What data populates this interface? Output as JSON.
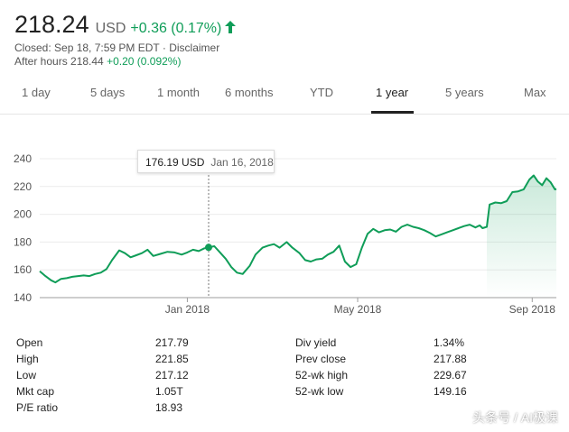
{
  "quote": {
    "price": "218.24",
    "currency": "USD",
    "change": "+0.36 (0.17%)",
    "arrow_icon": "arrow-up-icon",
    "closed_info": "Closed: Sep 18, 7:59 PM EDT · Disclaimer",
    "after_hours_label": "After hours 218.44",
    "after_hours_change": "+0.20 (0.092%)"
  },
  "tabs": [
    "1 day",
    "5 days",
    "1 month",
    "6 months",
    "YTD",
    "1 year",
    "5 years",
    "Max"
  ],
  "active_tab": "1 year",
  "tooltip": {
    "price": "176.19 USD",
    "date": "Jan 16, 2018"
  },
  "chart_data": {
    "type": "area",
    "title": "",
    "xlabel": "",
    "ylabel": "",
    "ylim": [
      140,
      240
    ],
    "yticks": [
      "240",
      "220",
      "200",
      "180",
      "160",
      "140"
    ],
    "xtick_labels": [
      "Jan 2018",
      "May 2018",
      "Sep 2018"
    ],
    "grid": "horizontal",
    "color": "#0f9d58",
    "series": [
      {
        "values": [
          [
            "2017-09-19",
            159.0
          ],
          [
            "2017-09-23",
            155.5
          ],
          [
            "2017-09-27",
            152.5
          ],
          [
            "2017-09-30",
            151.0
          ],
          [
            "2017-10-04",
            153.5
          ],
          [
            "2017-10-08",
            154.0
          ],
          [
            "2017-10-12",
            155.0
          ],
          [
            "2017-10-16",
            155.5
          ],
          [
            "2017-10-20",
            156.0
          ],
          [
            "2017-10-24",
            155.5
          ],
          [
            "2017-10-28",
            157.0
          ],
          [
            "2017-11-01",
            158.0
          ],
          [
            "2017-11-05",
            160.5
          ],
          [
            "2017-11-09",
            167.0
          ],
          [
            "2017-11-14",
            174.0
          ],
          [
            "2017-11-18",
            172.0
          ],
          [
            "2017-11-22",
            169.0
          ],
          [
            "2017-11-26",
            170.5
          ],
          [
            "2017-11-30",
            172.0
          ],
          [
            "2017-12-04",
            174.5
          ],
          [
            "2017-12-08",
            170.0
          ],
          [
            "2017-12-13",
            171.5
          ],
          [
            "2017-12-18",
            173.0
          ],
          [
            "2017-12-23",
            172.5
          ],
          [
            "2017-12-28",
            171.0
          ],
          [
            "2018-01-01",
            172.5
          ],
          [
            "2018-01-05",
            174.5
          ],
          [
            "2018-01-09",
            173.5
          ],
          [
            "2018-01-13",
            175.5
          ],
          [
            "2018-01-16",
            176.19
          ],
          [
            "2018-01-20",
            177.0
          ],
          [
            "2018-01-24",
            172.5
          ],
          [
            "2018-01-28",
            168.0
          ],
          [
            "2018-02-01",
            162.0
          ],
          [
            "2018-02-05",
            158.0
          ],
          [
            "2018-02-09",
            157.0
          ],
          [
            "2018-02-14",
            163.0
          ],
          [
            "2018-02-18",
            171.0
          ],
          [
            "2018-02-23",
            176.0
          ],
          [
            "2018-02-27",
            177.5
          ],
          [
            "2018-03-03",
            178.5
          ],
          [
            "2018-03-07",
            176.0
          ],
          [
            "2018-03-12",
            180.0
          ],
          [
            "2018-03-16",
            176.0
          ],
          [
            "2018-03-21",
            172.0
          ],
          [
            "2018-03-25",
            167.0
          ],
          [
            "2018-03-29",
            166.0
          ],
          [
            "2018-04-02",
            167.5
          ],
          [
            "2018-04-06",
            168.0
          ],
          [
            "2018-04-10",
            171.0
          ],
          [
            "2018-04-14",
            173.0
          ],
          [
            "2018-04-18",
            177.5
          ],
          [
            "2018-04-22",
            166.0
          ],
          [
            "2018-04-26",
            162.0
          ],
          [
            "2018-04-30",
            164.0
          ],
          [
            "2018-05-04",
            176.0
          ],
          [
            "2018-05-08",
            186.0
          ],
          [
            "2018-05-12",
            189.5
          ],
          [
            "2018-05-16",
            187.0
          ],
          [
            "2018-05-20",
            188.5
          ],
          [
            "2018-05-24",
            189.0
          ],
          [
            "2018-05-28",
            187.5
          ],
          [
            "2018-06-01",
            191.0
          ],
          [
            "2018-06-05",
            192.5
          ],
          [
            "2018-06-09",
            191.0
          ],
          [
            "2018-06-13",
            190.0
          ],
          [
            "2018-06-17",
            188.5
          ],
          [
            "2018-06-21",
            186.5
          ],
          [
            "2018-06-25",
            184.0
          ],
          [
            "2018-06-29",
            185.5
          ],
          [
            "2018-07-03",
            187.0
          ],
          [
            "2018-07-07",
            188.5
          ],
          [
            "2018-07-11",
            190.0
          ],
          [
            "2018-07-15",
            191.5
          ],
          [
            "2018-07-19",
            192.5
          ],
          [
            "2018-07-23",
            190.5
          ],
          [
            "2018-07-26",
            192.0
          ],
          [
            "2018-07-28",
            190.0
          ],
          [
            "2018-07-31",
            191.0
          ],
          [
            "2018-08-02",
            207.0
          ],
          [
            "2018-08-06",
            208.5
          ],
          [
            "2018-08-10",
            208.0
          ],
          [
            "2018-08-14",
            209.5
          ],
          [
            "2018-08-18",
            216.0
          ],
          [
            "2018-08-22",
            216.5
          ],
          [
            "2018-08-26",
            218.0
          ],
          [
            "2018-08-30",
            225.0
          ],
          [
            "2018-09-02",
            228.0
          ],
          [
            "2018-09-05",
            223.5
          ],
          [
            "2018-09-08",
            221.0
          ],
          [
            "2018-09-11",
            226.0
          ],
          [
            "2018-09-14",
            223.0
          ],
          [
            "2018-09-17",
            217.9
          ],
          [
            "2018-09-18",
            218.24
          ]
        ]
      }
    ]
  },
  "stats": [
    {
      "label": "Open",
      "value": "217.79",
      "label2": "Div yield",
      "value2": "1.34%"
    },
    {
      "label": "High",
      "value": "221.85",
      "label2": "Prev close",
      "value2": "217.88"
    },
    {
      "label": "Low",
      "value": "217.12",
      "label2": "52-wk high",
      "value2": "229.67"
    },
    {
      "label": "Mkt cap",
      "value": "1.05T",
      "label2": "52-wk low",
      "value2": "149.16"
    },
    {
      "label": "P/E ratio",
      "value": "18.93",
      "label2": "",
      "value2": ""
    }
  ],
  "watermark": "头条号 / AI极课"
}
